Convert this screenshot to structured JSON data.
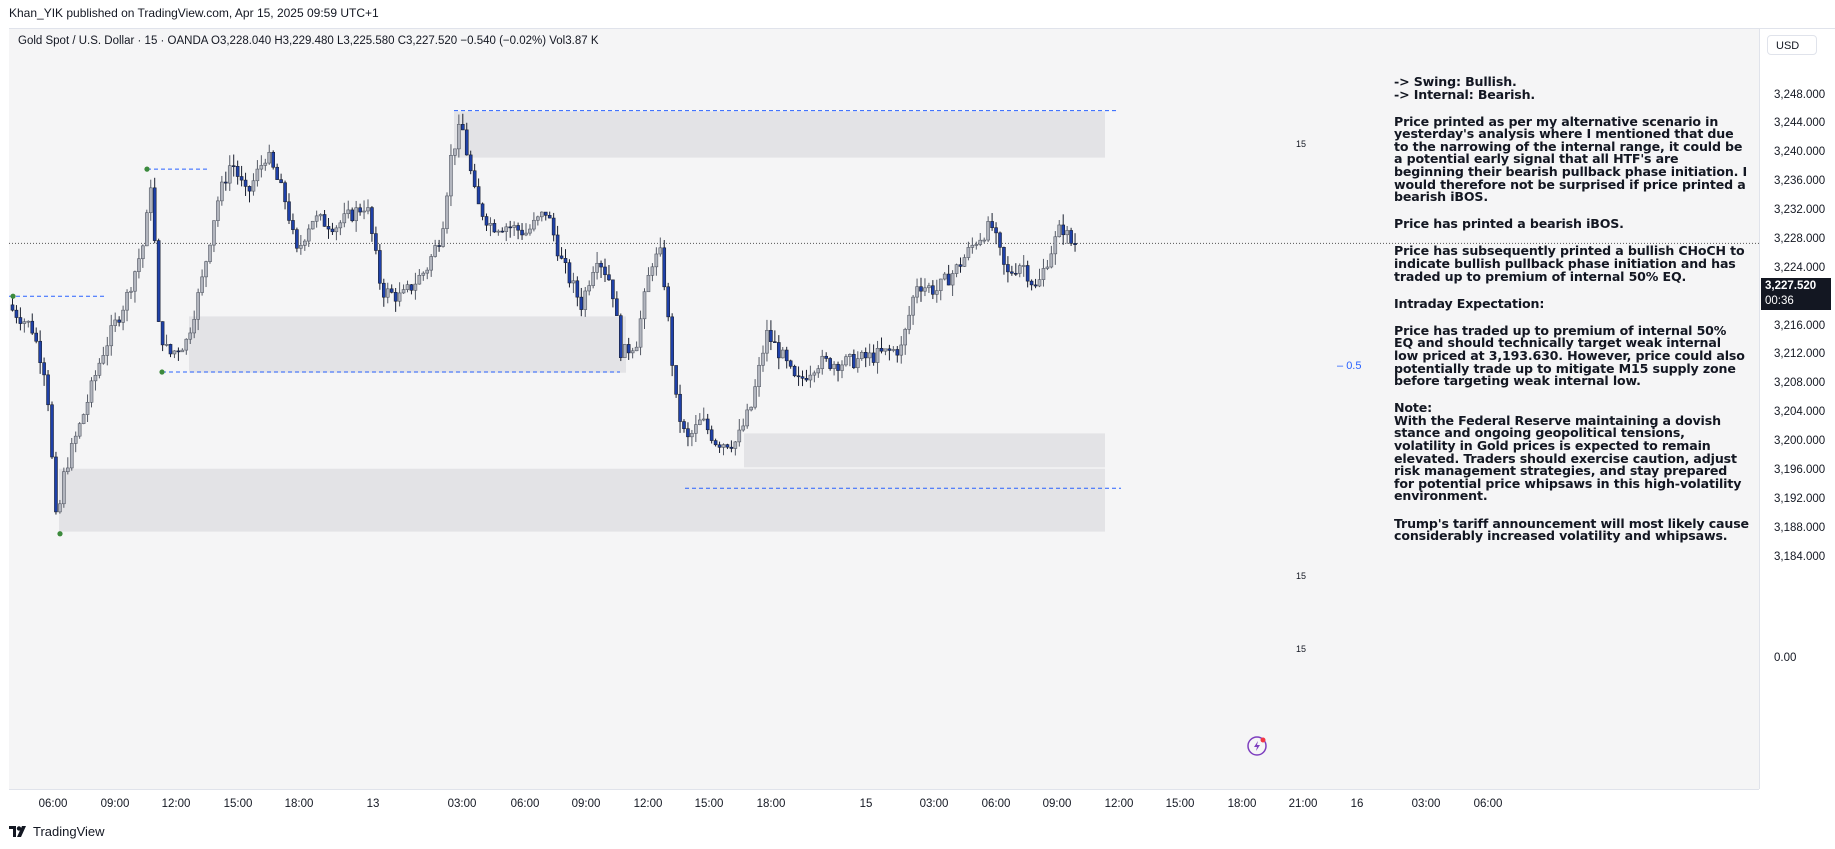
{
  "publisher_line": "Khan_YIK published on TradingView.com, Apr 15, 2025 09:59 UTC+1",
  "symbol_line": "Gold Spot / U.S. Dollar · 15 · OANDA  O3,228.040  H3,229.480  L3,225.580  C3,227.520  −0.540 (−0.02%)  Vol3.87 K",
  "currency": "USD",
  "price_ticks": [
    "3,248.000",
    "3,244.000",
    "3,240.000",
    "3,236.000",
    "3,232.000",
    "3,228.000",
    "3,224.000",
    "3,220.000",
    "3,216.000",
    "3,212.000",
    "3,208.000",
    "3,204.000",
    "3,200.000",
    "3,196.000",
    "3,192.000",
    "3,188.000",
    "3,184.000",
    "0.00"
  ],
  "current_price": "3,227.520",
  "countdown": "00:36",
  "time_ticks": [
    "06:00",
    "09:00",
    "12:00",
    "15:00",
    "18:00",
    "13",
    "03:00",
    "06:00",
    "09:00",
    "12:00",
    "15:00",
    "18:00",
    "15",
    "03:00",
    "06:00",
    "09:00",
    "12:00",
    "15:00",
    "18:00",
    "21:00",
    "16",
    "03:00",
    "06:00"
  ],
  "zone_labels": [
    "15",
    "15",
    "15"
  ],
  "eq_label": "0.5",
  "analysis": {
    "swing": "-> Swing:  Bullish.",
    "internal": "-> Internal:  Bearish.",
    "p1": "Price printed as per my alternative scenario in yesterday's analysis where I mentioned that due to the narrowing of the internal range, it could be a potential early signal that all HTF's are beginning their bearish pullback phase initiation.  I would therefore not be surprised if price printed a bearish iBOS.",
    "p2": "Price has printed a bearish iBOS.",
    "p3": "Price has subsequently printed a bullish CHoCH to indicate bullish pullback phase initiation and has traded up to premium of internal 50% EQ.",
    "p4": "Intraday Expectation:",
    "p5": "Price has traded up to premium of internal 50% EQ and should technically target weak internal low priced at 3,193.630.  However, price could also potentially trade up to mitigate M15 supply zone before targeting weak internal low.",
    "note_title": "Note:",
    "p6": "With the Federal Reserve maintaining a dovish stance and ongoing geopolitical tensions, volatility in Gold prices is expected to remain elevated. Traders should exercise caution, adjust risk management strategies, and stay prepared for potential price whipsaws in this high-volatility environment.",
    "p7": "Trump's tariff announcement will most likely cause considerably increased volatility and whipsaws."
  },
  "footer_brand": "TradingView",
  "colors": {
    "bull_candle": "#b2b5be",
    "bear_candle": "#1e40a8",
    "zone_fill": "#e3e3e6",
    "dashed_line": "#2962ff",
    "swing_point": "#3c8a3c",
    "plot_bg": "#f5f5f6"
  },
  "chart_data": {
    "type": "candlestick",
    "title": "Gold Spot / U.S. Dollar · 15 · OANDA",
    "ylim": [
      3182,
      3251
    ],
    "last_close": 3227.52,
    "zones": [
      {
        "top": 3245.8,
        "bottom": 3239.4
      },
      {
        "top": 3217.4,
        "bottom": 3209.6
      },
      {
        "top": 3201.2,
        "bottom": 3196.5
      },
      {
        "top": 3196.3,
        "bottom": 3187.6
      }
    ],
    "levels": [
      {
        "price": 3245.9,
        "style": "dashed"
      },
      {
        "price": 3237.8,
        "style": "dashed"
      },
      {
        "price": 3220.2,
        "style": "dashed"
      },
      {
        "price": 3209.7,
        "style": "dashed"
      },
      {
        "price": 3193.6,
        "style": "dashed"
      },
      {
        "price": 3227.52,
        "style": "dotted"
      }
    ]
  }
}
